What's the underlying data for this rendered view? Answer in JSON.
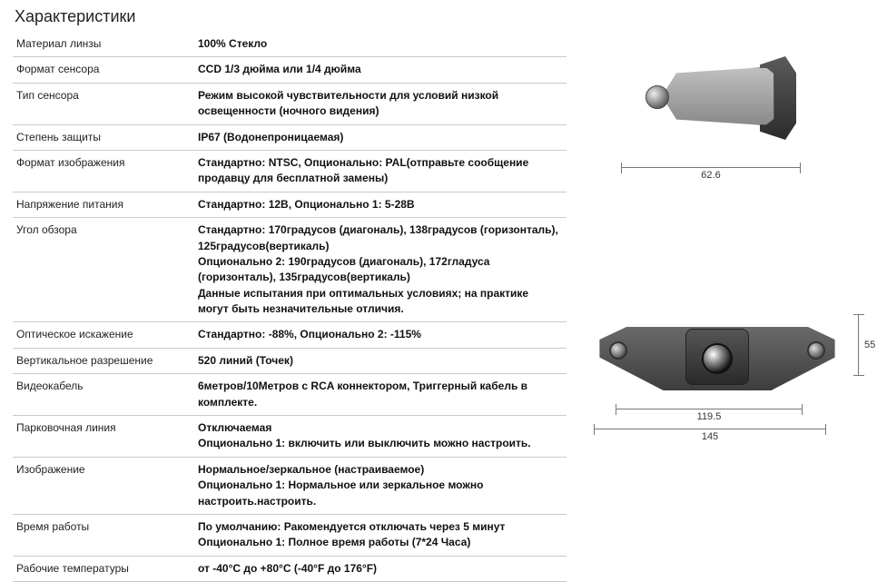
{
  "title": "Характеристики",
  "specs": [
    {
      "label": "Материал линзы",
      "value": "100% Стекло"
    },
    {
      "label": "Формат сенсора",
      "value": "CCD 1/3 дюйма или 1/4 дюйма"
    },
    {
      "label": "Тип сенсора",
      "value": "Режим высокой чувствительности для условий низкой освещенности (ночного видения)"
    },
    {
      "label": "Степень защиты",
      "value": "IP67 (Водонепроницаемая)"
    },
    {
      "label": "Формат изображения",
      "value": "Стандартно: NTSC, Опционально: PAL(отправьте сообщение продавцу для бесплатной замены)"
    },
    {
      "label": "Напряжение питания",
      "value": "Стандартно: 12В, Опционально 1: 5-28В"
    },
    {
      "label": "Угол обзора",
      "value": "Стандартно: 170градусов (диагональ), 138градусов (горизонталь), 125градусов(вертикаль)\nОпционально 2: 190градусов (диагональ), 172гладуса (горизонталь), 135градусов(вертикаль)\nДанные испытания при оптимальных условиях; на практике могут быть незначительные отличия."
    },
    {
      "label": "Оптическое искажение",
      "value": "Стандартно: -88%, Опционально 2: -115%"
    },
    {
      "label": "Вертикальное разрешение",
      "value": "520 линий (Точек)"
    },
    {
      "label": "Видеокабель",
      "value": "6метров/10Метров с RCA коннектором, Триггерный кабель в комплекте."
    },
    {
      "label": "Парковочная линия",
      "value": "Отключаемая\nОпционально 1: включить или выключить можно настроить."
    },
    {
      "label": "Изображение",
      "value": "Нормальное/зеркальное (настраиваемое)\nОпционально 1: Нормальное или зеркальное можно настроить.настроить."
    },
    {
      "label": "Время работы",
      "value": "По умолчанию: Ракомендуется отключать через 5 минут\nОпционально 1: Полное время работы (7*24 Часа)"
    },
    {
      "label": "Рабочие температуры",
      "value": "от -40°C до +80°C (-40°F до 176°F)"
    }
  ],
  "diagram_side": {
    "width_label": "62.6",
    "unit": "mm"
  },
  "diagram_front": {
    "w1_label": "119.5",
    "w2_label": "145",
    "h_label": "55",
    "unit": "mm"
  },
  "colors": {
    "border": "#c9c9c9",
    "text": "#1a1a1a",
    "dim_line": "#777777",
    "metal_light": "#bfbfbf",
    "metal_dark": "#3d3d3d"
  }
}
